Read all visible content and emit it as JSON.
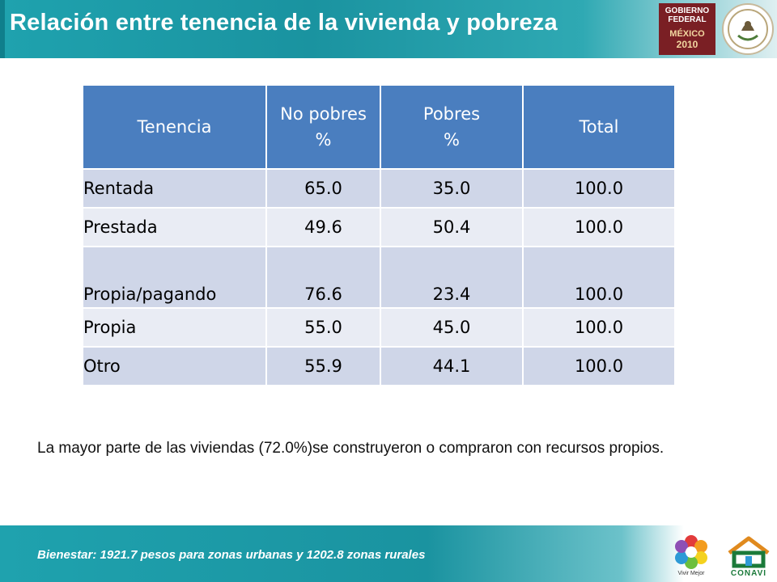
{
  "header": {
    "title": "Relación entre tenencia de la vivienda y pobreza",
    "gob_badge": {
      "line1": "GOBIERNO",
      "line2": "FEDERAL",
      "line3": "MÉXICO",
      "line4": "2010"
    }
  },
  "table": {
    "headers": [
      "Tenencia",
      "No pobres\n%",
      "Pobres\n%",
      "Total"
    ],
    "rows": [
      [
        "Rentada",
        "65.0",
        "35.0",
        "100.0"
      ],
      [
        "Prestada",
        "49.6",
        "50.4",
        "100.0"
      ],
      [
        "Propia/pagando",
        "76.6",
        "23.4",
        "100.0"
      ],
      [
        "Propia",
        "55.0",
        "45.0",
        "100.0"
      ],
      [
        "Otro",
        "55.9",
        "44.1",
        "100.0"
      ]
    ]
  },
  "note": "La mayor parte de las viviendas (72.0%)se construyeron o compraron con recursos propios.",
  "footer": {
    "text": "Bienestar: 1921.7 pesos para zonas urbanas y  1202.8 zonas rurales",
    "logo1_label": "Vivir Mejor",
    "logo2_label": "CONAVI"
  },
  "colors": {
    "header_teal": "#1a93a0",
    "table_header": "#4a7ebf",
    "row_odd": "#cfd6e8",
    "row_even": "#e9ecf4"
  }
}
